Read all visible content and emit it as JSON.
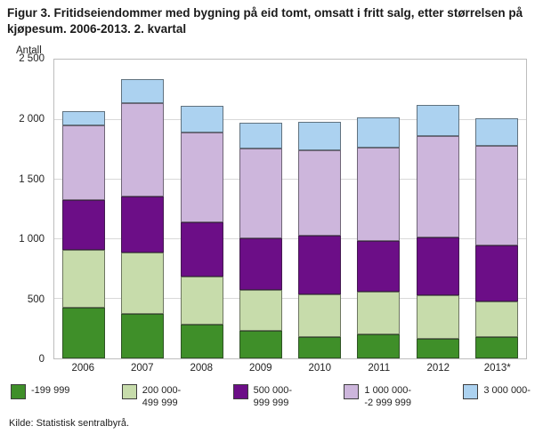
{
  "figure": {
    "title": "Figur 3. Fritidseiendommer med bygning på eid tomt, omsatt i fritt salg, etter størrelsen på kjøpesum. 2006-2013. 2. kvartal",
    "y_axis_label": "Antall",
    "source": "Kilde: Statistisk sentralbyrå."
  },
  "chart_data": {
    "type": "bar",
    "stacked": true,
    "title": "Figur 3. Fritidseiendommer med bygning på eid tomt, omsatt i fritt salg, etter størrelsen på kjøpesum. 2006-2013. 2. kvartal",
    "xlabel": "",
    "ylabel": "Antall",
    "grid": "horizontal",
    "legend_position": "bottom",
    "ylim": [
      0,
      2500
    ],
    "yticks": [
      0,
      500,
      1000,
      1500,
      2000,
      2500
    ],
    "ytick_labels": [
      "0",
      "500",
      "1 000",
      "1 500",
      "2 000",
      "2 500"
    ],
    "categories": [
      "2006",
      "2007",
      "2008",
      "2009",
      "2010",
      "2011",
      "2012",
      "2013*"
    ],
    "series": [
      {
        "name": "-199 999",
        "color": "#3f8f29",
        "values": [
          430,
          375,
          285,
          235,
          180,
          205,
          170,
          180
        ]
      },
      {
        "name": "200 000-\n499 999",
        "color": "#c7dcab",
        "values": [
          480,
          515,
          405,
          345,
          360,
          355,
          360,
          300
        ]
      },
      {
        "name": "500 000-\n999 999",
        "color": "#6c0e87",
        "values": [
          420,
          470,
          450,
          430,
          490,
          425,
          485,
          465
        ]
      },
      {
        "name": "1 000 000-\n-2 999 999",
        "color": "#cdb6dc",
        "values": [
          620,
          780,
          750,
          750,
          715,
          780,
          850,
          840
        ]
      },
      {
        "name": "3 000 000-",
        "color": "#acd2f0",
        "values": [
          120,
          200,
          230,
          215,
          235,
          255,
          260,
          225
        ]
      }
    ]
  }
}
